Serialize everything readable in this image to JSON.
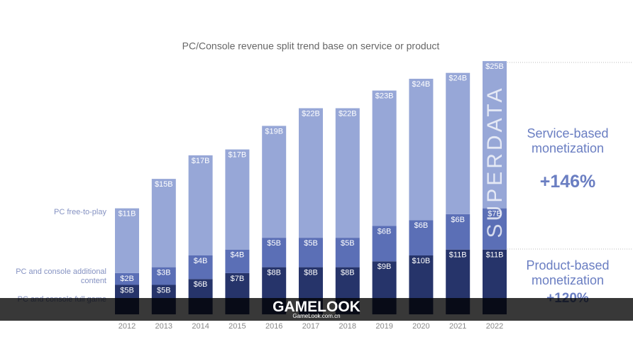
{
  "chart_data": {
    "type": "bar",
    "stacked": true,
    "title": "PC/Console revenue split trend base on service or product",
    "categories": [
      "2012",
      "2013",
      "2014",
      "2015",
      "2016",
      "2017",
      "2018",
      "2019",
      "2020",
      "2021",
      "2022"
    ],
    "series": [
      {
        "name": "PC and console full game",
        "color": "#26346a",
        "values": [
          5,
          5,
          6,
          7,
          8,
          8,
          8,
          9,
          10,
          11,
          11
        ],
        "value_labels": [
          "$5B",
          "$5B",
          "$6B",
          "$7B",
          "$8B",
          "$8B",
          "$8B",
          "$9B",
          "$10B",
          "$11B",
          "$11B"
        ]
      },
      {
        "name": "PC and console additional content",
        "color": "#5b6fb6",
        "values": [
          2,
          3,
          4,
          4,
          5,
          5,
          5,
          6,
          6,
          6,
          7
        ],
        "value_labels": [
          "$2B",
          "$3B",
          "$4B",
          "$4B",
          "$5B",
          "$5B",
          "$5B",
          "$6B",
          "$6B",
          "$6B",
          "$7B"
        ]
      },
      {
        "name": "PC free-to-play",
        "color": "#97a7d7",
        "values": [
          11,
          15,
          17,
          17,
          19,
          22,
          22,
          23,
          24,
          24,
          25
        ],
        "value_labels": [
          "$11B",
          "$15B",
          "$17B",
          "$17B",
          "$19B",
          "$22B",
          "$22B",
          "$23B",
          "$24B",
          "$24B",
          "$25B"
        ]
      }
    ],
    "annotations": {
      "service_label": "Service-based monetization",
      "service_change": "+146%",
      "product_label": "Product-based monetization",
      "product_change": "+120%"
    },
    "watermarks": {
      "vertical": "SUPERDATA",
      "banner": "GAMELOOK",
      "banner_url": "GameLook.com.cn"
    }
  }
}
